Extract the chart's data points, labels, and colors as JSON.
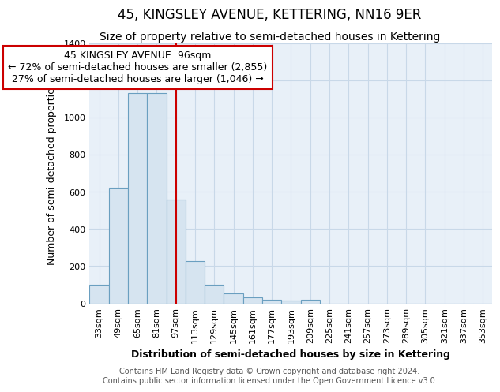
{
  "title": "45, KINGSLEY AVENUE, KETTERING, NN16 9ER",
  "subtitle": "Size of property relative to semi-detached houses in Kettering",
  "xlabel": "Distribution of semi-detached houses by size in Kettering",
  "ylabel": "Number of semi-detached properties",
  "footnote1": "Contains HM Land Registry data © Crown copyright and database right 2024.",
  "footnote2": "Contains public sector information licensed under the Open Government Licence v3.0.",
  "annotation_title": "45 KINGSLEY AVENUE: 96sqm",
  "annotation_line1": "← 72% of semi-detached houses are smaller (2,855)",
  "annotation_line2": "27% of semi-detached houses are larger (1,046) →",
  "bar_categories": [
    "33sqm",
    "49sqm",
    "65sqm",
    "81sqm",
    "97sqm",
    "113sqm",
    "129sqm",
    "145sqm",
    "161sqm",
    "177sqm",
    "193sqm",
    "209sqm",
    "225sqm",
    "241sqm",
    "257sqm",
    "273sqm",
    "289sqm",
    "305sqm",
    "321sqm",
    "337sqm",
    "353sqm"
  ],
  "bar_values": [
    100,
    620,
    1130,
    1130,
    560,
    225,
    100,
    52,
    30,
    20,
    15,
    18,
    0,
    0,
    0,
    0,
    0,
    0,
    0,
    0,
    0
  ],
  "bar_color": "#d6e4f0",
  "bar_edge_color": "#6a9fc0",
  "vline_color": "#cc0000",
  "annotation_box_color": "#cc0000",
  "plot_bg_color": "#e8f0f8",
  "ylim": [
    0,
    1400
  ],
  "yticks": [
    0,
    200,
    400,
    600,
    800,
    1000,
    1200,
    1400
  ],
  "grid_color": "#c8d8e8",
  "title_fontsize": 12,
  "subtitle_fontsize": 10,
  "axis_label_fontsize": 9,
  "tick_fontsize": 8,
  "annotation_fontsize": 9,
  "footnote_fontsize": 7
}
